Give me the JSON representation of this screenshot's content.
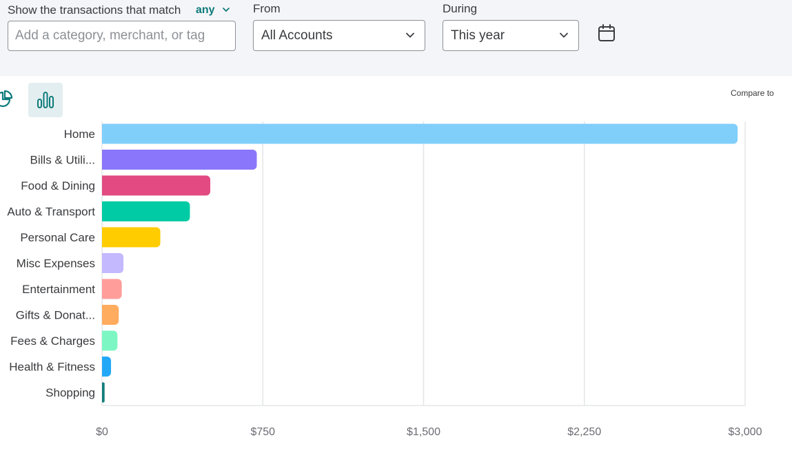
{
  "filters": {
    "match_label": "Show the transactions that match",
    "match_value": "any",
    "search_placeholder": "Add a category, merchant, or tag",
    "from_label": "From",
    "from_value": "All Accounts",
    "during_label": "During",
    "during_value": "This year"
  },
  "toolbar": {
    "compare_label": "Compare to"
  },
  "icons": {
    "pie": "pie-chart-icon",
    "bar": "bar-chart-icon",
    "calendar": "calendar-icon",
    "chevron": "chevron-down-icon"
  },
  "colors": {
    "accent": "#0d7a7a",
    "filter_bg": "#f4f5f8"
  },
  "chart_data": {
    "type": "bar",
    "orientation": "horizontal",
    "categories": [
      "Home",
      "Bills & Utili...",
      "Food & Dining",
      "Auto & Transport",
      "Personal Care",
      "Misc Expenses",
      "Entertainment",
      "Gifts & Donat...",
      "Fees & Charges",
      "Health & Fitness",
      "Shopping"
    ],
    "values": [
      2965,
      722,
      505,
      410,
      272,
      100,
      92,
      78,
      72,
      42,
      12
    ],
    "colors": [
      "#80cffb",
      "#8a76fa",
      "#e24a81",
      "#00cba4",
      "#ffcc00",
      "#c4b9fe",
      "#ff9d9b",
      "#ffac5e",
      "#7cf7c3",
      "#23a8f8",
      "#127d7c"
    ],
    "xlim": [
      0,
      3000
    ],
    "x_ticks": [
      "$0",
      "$750",
      "$1,500",
      "$2,250",
      "$3,000"
    ],
    "x_tick_values": [
      0,
      750,
      1500,
      2250,
      3000
    ],
    "grid": true,
    "title": "",
    "xlabel": "",
    "ylabel": ""
  }
}
